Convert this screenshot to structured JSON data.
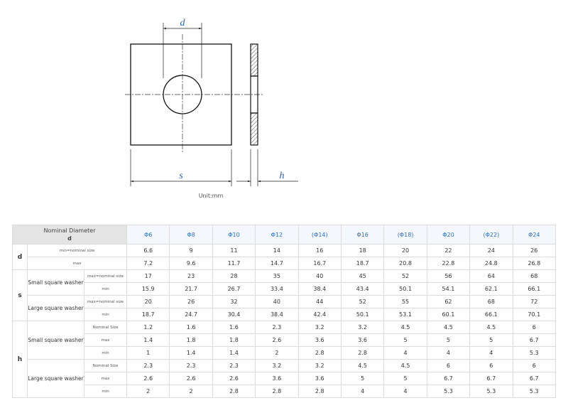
{
  "drawing": {
    "labels": {
      "d": "d",
      "s": "s",
      "h": "h"
    },
    "unit": "Unit:mm"
  },
  "table": {
    "header": {
      "title": "Nominal Diameter",
      "symbol": "d",
      "sizes": [
        "Φ6",
        "Φ8",
        "Φ10",
        "Φ12",
        "(Φ14)",
        "Φ16",
        "(Φ18)",
        "Φ20",
        "(Φ22)",
        "Φ24"
      ]
    },
    "groups": [
      {
        "symbol": "d",
        "rows": [
          {
            "label": "min=nominal size",
            "values": [
              6.6,
              9,
              11,
              14,
              16,
              18,
              20,
              22,
              24,
              26
            ]
          },
          {
            "label": "max",
            "values": [
              7.2,
              9.6,
              11.7,
              14.7,
              16.7,
              18.7,
              20.8,
              22.8,
              24.8,
              26.8
            ]
          }
        ]
      },
      {
        "symbol": "s",
        "subgroups": [
          {
            "name": "Small square washer",
            "rows": [
              {
                "label": "max=nominal size",
                "values": [
                  17,
                  23,
                  28,
                  35,
                  40,
                  45,
                  52,
                  56,
                  64,
                  68
                ]
              },
              {
                "label": "min",
                "values": [
                  15.9,
                  21.7,
                  26.7,
                  33.4,
                  38.4,
                  43.4,
                  50.1,
                  54.1,
                  62.1,
                  66.1
                ]
              }
            ]
          },
          {
            "name": "Large square washer",
            "rows": [
              {
                "label": "max=nominal size",
                "values": [
                  20,
                  26,
                  32,
                  40,
                  44,
                  52,
                  55,
                  62,
                  68,
                  72
                ]
              },
              {
                "label": "min",
                "values": [
                  18.7,
                  24.7,
                  30.4,
                  38.4,
                  42.4,
                  50.1,
                  53.1,
                  60.1,
                  66.1,
                  70.1
                ]
              }
            ]
          }
        ]
      },
      {
        "symbol": "h",
        "subgroups": [
          {
            "name": "Small square washer",
            "rows": [
              {
                "label": "Nominal Size",
                "values": [
                  1.2,
                  1.6,
                  1.6,
                  2.3,
                  3.2,
                  3.2,
                  4.5,
                  4.5,
                  4.5,
                  6
                ]
              },
              {
                "label": "max",
                "values": [
                  1.4,
                  1.8,
                  1.8,
                  2.6,
                  3.6,
                  3.6,
                  5,
                  5,
                  5,
                  6.7
                ]
              },
              {
                "label": "min",
                "values": [
                  1,
                  1.4,
                  1.4,
                  2,
                  2.8,
                  2.8,
                  4,
                  4,
                  4,
                  5.3
                ]
              }
            ]
          },
          {
            "name": "Large square washer",
            "rows": [
              {
                "label": "Nominal Size",
                "values": [
                  2.3,
                  2.3,
                  2.3,
                  3.2,
                  3.2,
                  4.5,
                  4.5,
                  6,
                  6,
                  6
                ]
              },
              {
                "label": "max",
                "values": [
                  2.6,
                  2.6,
                  2.6,
                  3.6,
                  3.6,
                  5,
                  5,
                  6.7,
                  6.7,
                  6.7
                ]
              },
              {
                "label": "min",
                "values": [
                  2,
                  2,
                  2.8,
                  2.8,
                  2.8,
                  4,
                  4,
                  5.3,
                  5.3,
                  5.3
                ]
              }
            ]
          }
        ]
      }
    ]
  }
}
